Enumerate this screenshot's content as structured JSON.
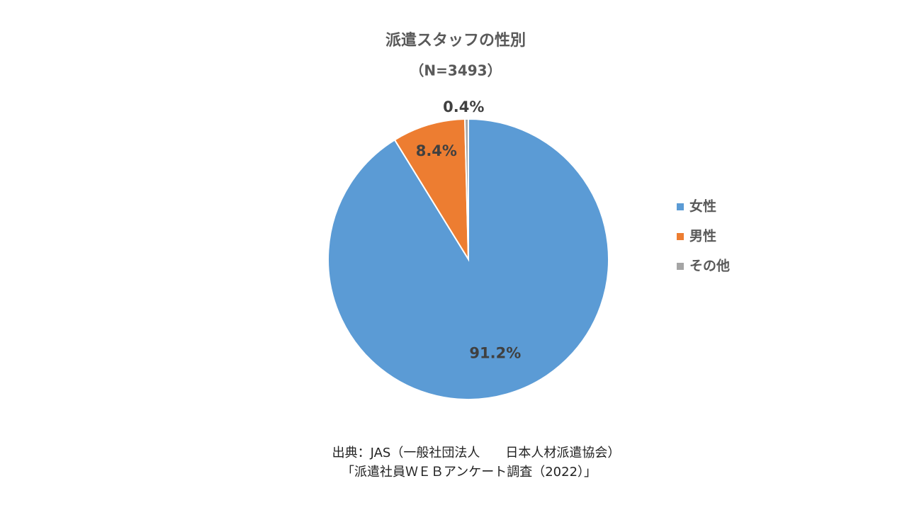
{
  "chart_data": {
    "type": "pie",
    "title": "派遣スタッフの性別",
    "subtitle": "（N=3493）",
    "categories": [
      "女性",
      "男性",
      "その他"
    ],
    "values": [
      91.2,
      8.4,
      0.4
    ],
    "value_labels": [
      "91.2%",
      "8.4%",
      "0.4%"
    ],
    "colors": [
      "#5b9bd5",
      "#ed7d31",
      "#a5a5a5"
    ],
    "legend": "right",
    "source": [
      "出典：JAS（一般社団法人　　日本人材派遣協会）",
      "「派遣社員ＷＥＢアンケート調査（2022）」"
    ]
  }
}
